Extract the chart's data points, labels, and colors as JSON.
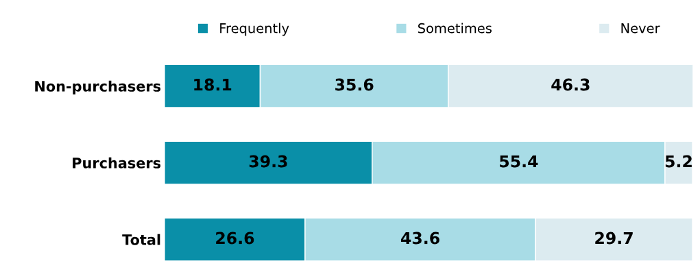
{
  "chart_data": {
    "type": "bar",
    "orientation": "horizontal",
    "stacked": true,
    "categories": [
      "Non-purchasers",
      "Purchasers",
      "Total"
    ],
    "series": [
      {
        "name": "Frequently",
        "color": "#0a8fa8",
        "values": [
          18.1,
          39.3,
          26.6
        ]
      },
      {
        "name": "Sometimes",
        "color": "#a8dce6",
        "values": [
          35.6,
          55.4,
          43.6
        ]
      },
      {
        "name": "Never",
        "color": "#dcebf0",
        "values": [
          46.3,
          5.2,
          29.7
        ]
      }
    ],
    "data_labels": true,
    "legend": "top",
    "grid": false
  }
}
